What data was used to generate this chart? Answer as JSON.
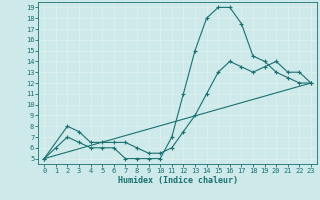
{
  "xlabel": "Humidex (Indice chaleur)",
  "bg_color": "#cde9e9",
  "grid_color": "#ddf0f0",
  "line_color": "#1a7070",
  "xlim": [
    -0.5,
    23.5
  ],
  "ylim": [
    4.5,
    19.5
  ],
  "xticks": [
    0,
    1,
    2,
    3,
    4,
    5,
    6,
    7,
    8,
    9,
    10,
    11,
    12,
    13,
    14,
    15,
    16,
    17,
    18,
    19,
    20,
    21,
    22,
    23
  ],
  "yticks": [
    5,
    6,
    7,
    8,
    9,
    10,
    11,
    12,
    13,
    14,
    15,
    16,
    17,
    18,
    19
  ],
  "line1_x": [
    0,
    1,
    2,
    3,
    4,
    5,
    6,
    7,
    8,
    9,
    10,
    11,
    12,
    13,
    14,
    15,
    16,
    17,
    18,
    19,
    20,
    21,
    22,
    23
  ],
  "line1_y": [
    5,
    6,
    7,
    6.5,
    6,
    6,
    6,
    5,
    5,
    5,
    5,
    7,
    11,
    15,
    18,
    19,
    19,
    17.5,
    14.5,
    14,
    13,
    12.5,
    12,
    12
  ],
  "line2_x": [
    0,
    2,
    3,
    4,
    5,
    6,
    7,
    8,
    9,
    10,
    11,
    12,
    13,
    14,
    15,
    16,
    17,
    18,
    19,
    20,
    21,
    22,
    23
  ],
  "line2_y": [
    5,
    8,
    7.5,
    6.5,
    6.5,
    6.5,
    6.5,
    6,
    5.5,
    5.5,
    6,
    7.5,
    9,
    11,
    13,
    14,
    13.5,
    13,
    13.5,
    14,
    13,
    13,
    12
  ],
  "line3_x": [
    0,
    23
  ],
  "line3_y": [
    5,
    12
  ]
}
